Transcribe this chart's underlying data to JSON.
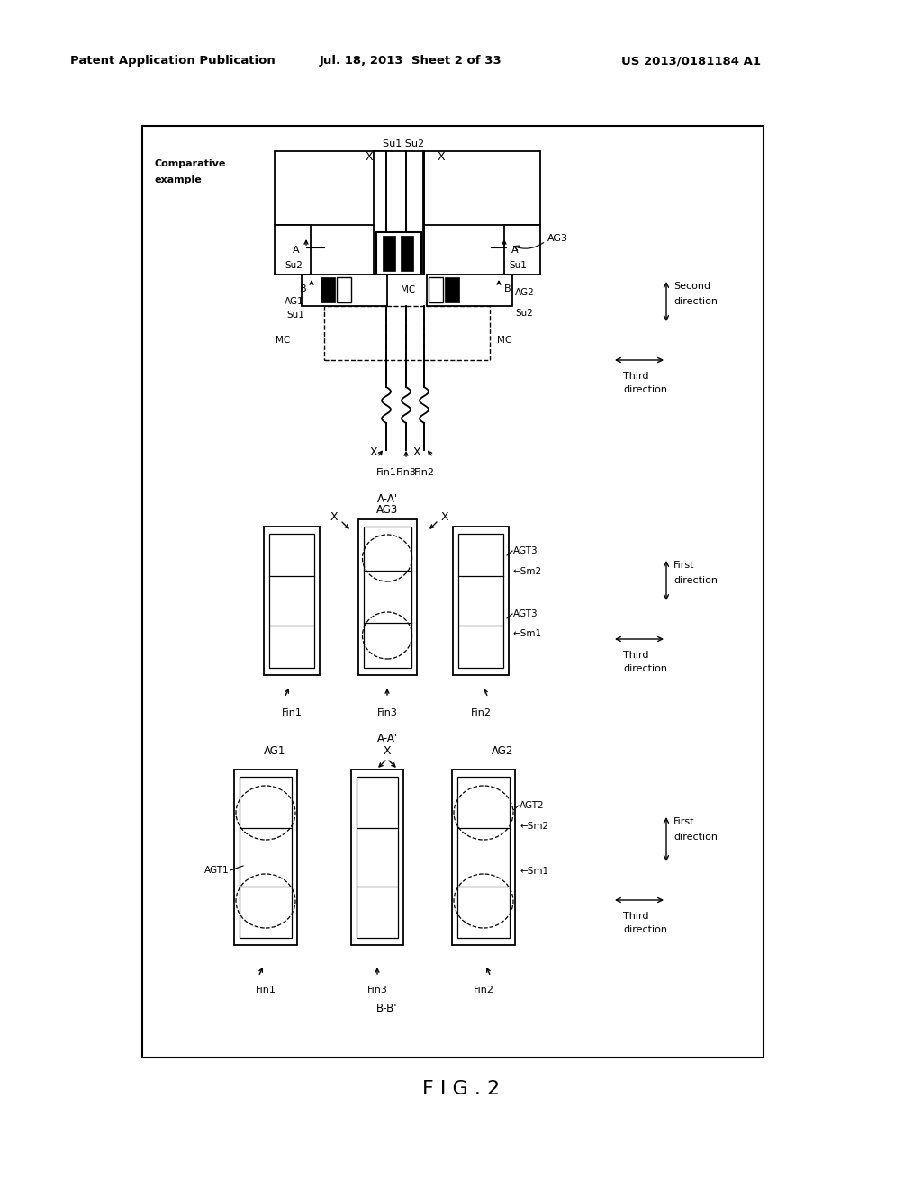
{
  "header_left": "Patent Application Publication",
  "header_mid": "Jul. 18, 2013  Sheet 2 of 33",
  "header_right": "US 2013/0181184 A1",
  "fig_label": "F I G . 2",
  "bg_color": "#ffffff"
}
